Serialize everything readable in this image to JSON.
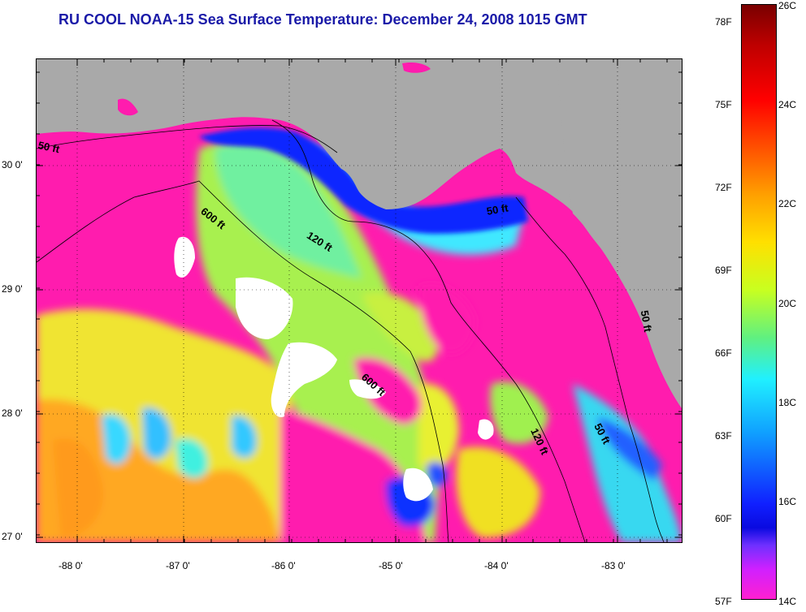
{
  "title": "RU COOL  NOAA-15  Sea Surface Temperature:  December 24, 2008 1015 GMT",
  "map": {
    "lon_labels": [
      "-88 0'",
      "-87 0'",
      "-86 0'",
      "-85 0'",
      "-84 0'",
      "-83 0'"
    ],
    "lat_labels": [
      "30 0'",
      "29 0'",
      "28 0'",
      "27 0'"
    ],
    "contour_labels": [
      "50 ft",
      "600 ft",
      "120 ft",
      "50 ft",
      "600 ft",
      "120 ft",
      "50 ft",
      "50 ft"
    ],
    "colors": {
      "land": "#a9a9a9",
      "cloud": "#ffffff",
      "coldest_water": "#ff1cae",
      "cold_water": "#0a28ff",
      "mid_water": "#40f0e0",
      "mild_water": "#b8f040",
      "warm_water": "#f5e800",
      "warmest_water": "#ff9a1a"
    }
  },
  "colorbar": {
    "fahrenheit_labels": [
      "78F",
      "75F",
      "72F",
      "69F",
      "66F",
      "63F",
      "60F",
      "57F"
    ],
    "celsius_labels": [
      "26C",
      "24C",
      "22C",
      "20C",
      "18C",
      "16C",
      "14C"
    ]
  }
}
